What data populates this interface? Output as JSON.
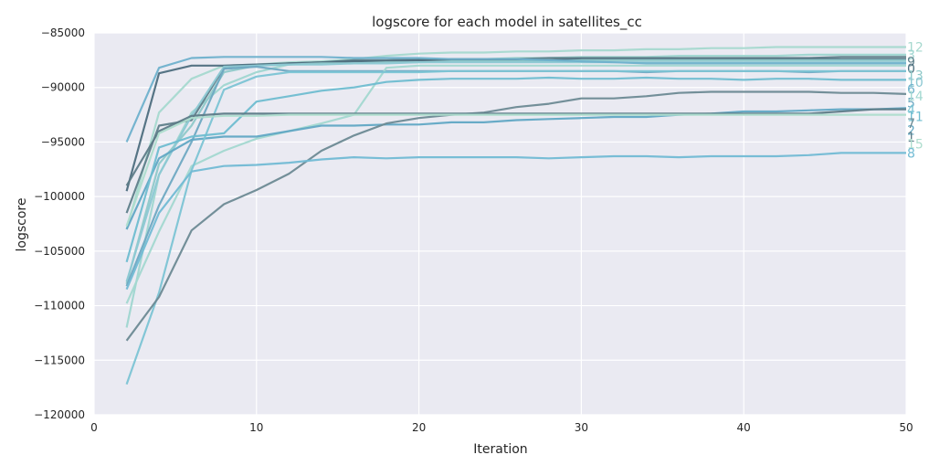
{
  "chart_data": {
    "type": "line",
    "title": "logscore for each model in satellites_cc",
    "xlabel": "Iteration",
    "ylabel": "logscore",
    "xlim": [
      0,
      50
    ],
    "ylim": [
      -120000,
      -85000
    ],
    "xticks": [
      0,
      10,
      20,
      30,
      40,
      50
    ],
    "yticks": [
      -85000,
      -90000,
      -95000,
      -100000,
      -105000,
      -110000,
      -115000,
      -120000
    ],
    "x": [
      2,
      4,
      6,
      8,
      10,
      12,
      14,
      16,
      18,
      20,
      22,
      24,
      26,
      28,
      30,
      32,
      34,
      36,
      38,
      40,
      42,
      44,
      46,
      48,
      50
    ],
    "grid": true,
    "background": "#EAEAF2",
    "series": [
      {
        "name": "12",
        "color": "#A7D9CF",
        "values": [
          -103000,
          -92300,
          -89200,
          -88000,
          -87900,
          -87700,
          -87600,
          -87400,
          -87100,
          -86900,
          -86800,
          -86800,
          -86700,
          -86700,
          -86600,
          -86600,
          -86500,
          -86500,
          -86400,
          -86400,
          -86300,
          -86300,
          -86300,
          -86300,
          -86300
        ]
      },
      {
        "name": "3",
        "color": "#9FD6D0",
        "values": [
          -112000,
          -98000,
          -92300,
          -89800,
          -88600,
          -87900,
          -87700,
          -87600,
          -87600,
          -87500,
          -87400,
          -87400,
          -87300,
          -87300,
          -87200,
          -87200,
          -87200,
          -87100,
          -87100,
          -87100,
          -87100,
          -87000,
          -87000,
          -87000,
          -87000
        ]
      },
      {
        "name": "9",
        "color": "#5F7F8A",
        "values": [
          -101500,
          -93500,
          -93000,
          -88200,
          -88000,
          -87800,
          -87700,
          -87500,
          -87500,
          -87400,
          -87400,
          -87400,
          -87400,
          -87300,
          -87300,
          -87300,
          -87300,
          -87300,
          -87300,
          -87300,
          -87300,
          -87300,
          -87200,
          -87200,
          -87200
        ]
      },
      {
        "name": "0",
        "color": "#4E6E7E",
        "values": [
          -99500,
          -88700,
          -88000,
          -88000,
          -87900,
          -87800,
          -87700,
          -87600,
          -87600,
          -87500,
          -87500,
          -87500,
          -87500,
          -87500,
          -87400,
          -87400,
          -87400,
          -87400,
          -87400,
          -87400,
          -87400,
          -87400,
          -87400,
          -87400,
          -87400
        ]
      },
      {
        "name": "13",
        "color": "#8FC9C9",
        "values": [
          -108000,
          -97000,
          -93500,
          -88600,
          -88000,
          -87900,
          -87800,
          -87800,
          -87700,
          -87700,
          -87600,
          -87600,
          -87600,
          -87600,
          -87500,
          -87500,
          -87500,
          -87500,
          -87500,
          -87500,
          -87500,
          -87500,
          -87500,
          -87500,
          -87500
        ]
      },
      {
        "name": "10",
        "color": "#8CC8D3",
        "values": [
          -107800,
          -98000,
          -92600,
          -88100,
          -88000,
          -87900,
          -87900,
          -87800,
          -87800,
          -87700,
          -87700,
          -87700,
          -87700,
          -87700,
          -87700,
          -87700,
          -87700,
          -87700,
          -87700,
          -87700,
          -87700,
          -87700,
          -87700,
          -87700,
          -87700
        ]
      },
      {
        "name": "6",
        "color": "#6FB1CC",
        "values": [
          -95000,
          -88200,
          -87300,
          -87200,
          -87200,
          -87200,
          -87200,
          -87300,
          -87300,
          -87300,
          -87400,
          -87400,
          -87400,
          -87500,
          -87600,
          -87700,
          -87800,
          -87800,
          -87800,
          -87800,
          -87800,
          -87800,
          -87800,
          -87800,
          -87800
        ]
      },
      {
        "name": "5",
        "color": "#6FA9C2",
        "values": [
          -108200,
          -100800,
          -95000,
          -88300,
          -88100,
          -88500,
          -88500,
          -88500,
          -88500,
          -88500,
          -88500,
          -88500,
          -88500,
          -88500,
          -88500,
          -88500,
          -88600,
          -88500,
          -88500,
          -88500,
          -88500,
          -88600,
          -88500,
          -88500,
          -88500
        ]
      },
      {
        "name": "14",
        "color": "#A3D8D0",
        "values": [
          -109800,
          -103200,
          -97200,
          -95800,
          -94700,
          -94000,
          -93300,
          -92500,
          -88200,
          -88000,
          -88000,
          -88000,
          -88000,
          -88000,
          -88000,
          -88000,
          -88000,
          -88000,
          -88000,
          -88000,
          -88000,
          -88000,
          -88000,
          -88000,
          -88000
        ]
      },
      {
        "name": "2",
        "color": "#61A8C4",
        "values": [
          -103000,
          -96500,
          -94800,
          -94500,
          -94500,
          -94000,
          -93500,
          -93500,
          -93400,
          -93400,
          -93200,
          -93200,
          -93000,
          -92900,
          -92800,
          -92700,
          -92700,
          -92500,
          -92400,
          -92200,
          -92200,
          -92100,
          -92000,
          -92000,
          -91900
        ]
      },
      {
        "name": "4",
        "color": "#7CC4D4",
        "values": [
          -117200,
          -108800,
          -97600,
          -90200,
          -89000,
          -88600,
          -88600,
          -88600,
          -88600,
          -88600,
          -88500,
          -88500,
          -88500,
          -88500,
          -88500,
          -88500,
          -88500,
          -88500,
          -88500,
          -88500,
          -88500,
          -88500,
          -88500,
          -88500,
          -88500
        ]
      },
      {
        "name": "11",
        "color": "#6FBDD0",
        "values": [
          -106000,
          -95500,
          -94500,
          -94200,
          -91300,
          -90800,
          -90300,
          -90000,
          -89500,
          -89300,
          -89200,
          -89200,
          -89200,
          -89100,
          -89200,
          -89200,
          -89100,
          -89200,
          -89200,
          -89300,
          -89200,
          -89200,
          -89300,
          -89300,
          -89300
        ]
      },
      {
        "name": "7",
        "color": "#6D8A94",
        "values": [
          -113200,
          -109200,
          -103100,
          -100700,
          -99400,
          -97900,
          -95800,
          -94400,
          -93300,
          -92800,
          -92500,
          -92300,
          -91800,
          -91500,
          -91000,
          -91000,
          -90800,
          -90500,
          -90400,
          -90400,
          -90400,
          -90400,
          -90500,
          -90500,
          -90600
        ]
      },
      {
        "name": "1",
        "color": "#5E7C88",
        "values": [
          -99000,
          -94000,
          -92600,
          -92400,
          -92400,
          -92400,
          -92400,
          -92400,
          -92400,
          -92400,
          -92400,
          -92400,
          -92400,
          -92400,
          -92400,
          -92400,
          -92400,
          -92400,
          -92400,
          -92400,
          -92400,
          -92400,
          -92200,
          -92000,
          -92000
        ]
      },
      {
        "name": "15",
        "color": "#AEDDCE",
        "values": [
          -102700,
          -94200,
          -92800,
          -92600,
          -92600,
          -92500,
          -92500,
          -92500,
          -92500,
          -92500,
          -92500,
          -92500,
          -92500,
          -92500,
          -92500,
          -92500,
          -92500,
          -92500,
          -92500,
          -92500,
          -92500,
          -92500,
          -92500,
          -92500,
          -92500
        ]
      },
      {
        "name": "8",
        "color": "#72BBD4",
        "values": [
          -108500,
          -101500,
          -97700,
          -97200,
          -97100,
          -96900,
          -96600,
          -96400,
          -96500,
          -96400,
          -96400,
          -96400,
          -96400,
          -96500,
          -96400,
          -96300,
          -96300,
          -96400,
          -96300,
          -96300,
          -96300,
          -96200,
          -96000,
          -96000,
          -96000
        ]
      }
    ]
  }
}
